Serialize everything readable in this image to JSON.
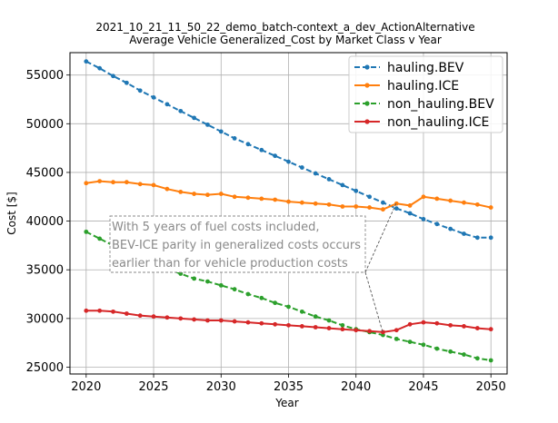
{
  "chart_data": {
    "type": "line",
    "title": "2021_10_21_11_50_22_demo_batch-context_a_dev_ActionAlternative",
    "subtitle": "Average Vehicle Generalized_Cost  by Market Class v Year",
    "xlabel": "Year",
    "ylabel": "Cost [$]",
    "xlim": [
      2018.8,
      2051.2
    ],
    "ylim": [
      24300,
      57300
    ],
    "xticks": [
      2020,
      2025,
      2030,
      2035,
      2040,
      2045,
      2050
    ],
    "yticks": [
      25000,
      30000,
      35000,
      40000,
      45000,
      50000,
      55000
    ],
    "xtick_labels": [
      "2020",
      "2025",
      "2030",
      "2035",
      "2040",
      "2045",
      "2050"
    ],
    "ytick_labels": [
      "25000",
      "30000",
      "35000",
      "40000",
      "45000",
      "50000",
      "55000"
    ],
    "grid": true,
    "legend_position": "top-right",
    "x": [
      2020,
      2021,
      2022,
      2023,
      2024,
      2025,
      2026,
      2027,
      2028,
      2029,
      2030,
      2031,
      2032,
      2033,
      2034,
      2035,
      2036,
      2037,
      2038,
      2039,
      2040,
      2041,
      2042,
      2043,
      2044,
      2045,
      2046,
      2047,
      2048,
      2049,
      2050
    ],
    "series": [
      {
        "name": "hauling.BEV",
        "color": "#1f77b4",
        "dashed": true,
        "values": [
          56400,
          55700,
          54900,
          54200,
          53400,
          52700,
          52000,
          51300,
          50600,
          49900,
          49200,
          48500,
          47900,
          47300,
          46700,
          46100,
          45500,
          44900,
          44300,
          43700,
          43100,
          42500,
          41900,
          41300,
          40800,
          40200,
          39700,
          39200,
          38700,
          38300,
          38300
        ]
      },
      {
        "name": "hauling.ICE",
        "color": "#ff7f0e",
        "dashed": false,
        "values": [
          43900,
          44100,
          44000,
          44000,
          43800,
          43700,
          43300,
          43000,
          42800,
          42700,
          42800,
          42500,
          42400,
          42300,
          42200,
          42000,
          41900,
          41800,
          41700,
          41500,
          41500,
          41400,
          41200,
          41800,
          41600,
          42500,
          42300,
          42100,
          41900,
          41700,
          41400
        ]
      },
      {
        "name": "non_hauling.BEV",
        "color": "#2ca02c",
        "dashed": true,
        "values": [
          38900,
          38200,
          37500,
          36800,
          36200,
          35600,
          35100,
          34600,
          34100,
          33800,
          33400,
          33000,
          32500,
          32100,
          31600,
          31200,
          30700,
          30200,
          29800,
          29300,
          28900,
          28600,
          28300,
          27900,
          27600,
          27300,
          26900,
          26600,
          26300,
          25900,
          25700
        ]
      },
      {
        "name": "non_hauling.ICE",
        "color": "#d62728",
        "dashed": false,
        "values": [
          30800,
          30800,
          30700,
          30500,
          30300,
          30200,
          30100,
          30000,
          29900,
          29800,
          29800,
          29700,
          29600,
          29500,
          29400,
          29300,
          29200,
          29100,
          29000,
          28900,
          28800,
          28700,
          28600,
          28800,
          29400,
          29600,
          29500,
          29300,
          29200,
          29000,
          28900
        ]
      }
    ],
    "annotation": {
      "lines": [
        "With 5 years of fuel costs included,",
        "BEV-ICE parity in generalized costs occurs",
        "earlier than for vehicle production  costs"
      ],
      "pointer_targets": [
        {
          "x": 2043,
          "y": 41900
        },
        {
          "x": 2042,
          "y": 28500
        }
      ]
    }
  }
}
